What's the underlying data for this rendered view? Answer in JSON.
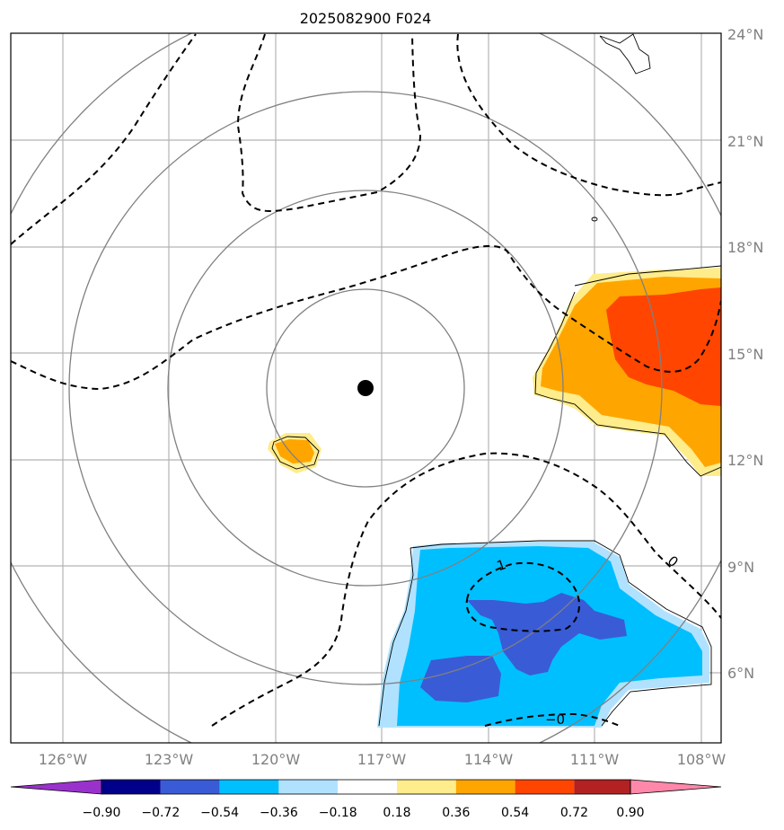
{
  "title": "2025082900 F024",
  "latitude_labels": [
    "24°N",
    "21°N",
    "18°N",
    "15°N",
    "12°N",
    "9°N",
    "6°N"
  ],
  "longitude_labels": [
    "126°W",
    "123°W",
    "120°W",
    "117°W",
    "114°W",
    "111°W",
    "108°W"
  ],
  "colorbar": {
    "tick_labels": [
      "−0.90",
      "−0.72",
      "−0.54",
      "−0.36",
      "−0.18",
      "0.18",
      "0.36",
      "0.54",
      "0.72",
      "0.90"
    ],
    "colors": [
      "#9932CC",
      "#00008B",
      "#3A5BD6",
      "#00BFFF",
      "#B0E2FF",
      "#FFFFFF",
      "#FFEC8B",
      "#FFA500",
      "#FF4500",
      "#B22222",
      "#FF88AA"
    ]
  },
  "contour_labels": {
    "upper_right": "0",
    "center_lobe": "1",
    "bottom": "−0"
  },
  "center_marker": "storm-center"
}
